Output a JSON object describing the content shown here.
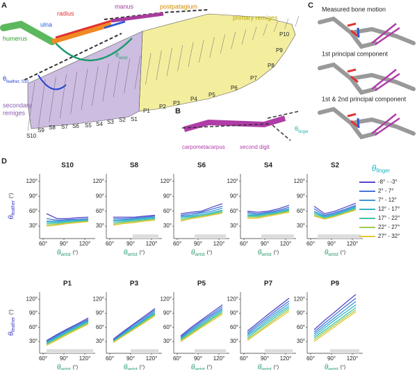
{
  "panel_labels": [
    "A",
    "B",
    "C",
    "D"
  ],
  "panel_a": {
    "manus": "manus",
    "postpatagium": "postpatagium",
    "primary_remiges": "primary remiges",
    "radius": "radius",
    "ulna": "ulna",
    "humerus": "humerus",
    "theta_wrist": {
      "symbol": "θ",
      "sub": "wrist"
    },
    "theta_feather": {
      "symbol": "θ",
      "sub": "feather, S10"
    },
    "secondary_remiges": [
      "secondary",
      "remiges"
    ],
    "primaries": [
      "P10",
      "P9",
      "P8",
      "P7",
      "P6",
      "P5",
      "P4",
      "P3",
      "P2",
      "P1"
    ],
    "secondaries": [
      "S1",
      "S2",
      "S3",
      "S4",
      "S5",
      "S6",
      "S7",
      "S8",
      "S9",
      "S10"
    ]
  },
  "panel_b": {
    "theta_finger": {
      "symbol": "θ",
      "sub": "finger"
    },
    "carpometacarpus": "carpometacarpus",
    "second_digit": "second digit"
  },
  "panel_c": {
    "titles": [
      "Measured bone motion",
      "1st principal component",
      "1st & 2nd principal component"
    ]
  },
  "panel_d": {
    "ylabel": {
      "symbol": "θ",
      "sub": "feather",
      "unit": "(°)"
    },
    "xlabel": {
      "symbol": "θ",
      "sub": "wrist",
      "unit": "(°)"
    },
    "legend": {
      "symbol": "θ",
      "sub": "finger",
      "items": [
        {
          "name": "-8° - -3°",
          "color": "#5448c8"
        },
        {
          "name": "2° - 7°",
          "color": "#4473d6"
        },
        {
          "name": "7° - 12°",
          "color": "#3f97d8"
        },
        {
          "name": "12° - 17°",
          "color": "#33b3c9"
        },
        {
          "name": "17° - 22°",
          "color": "#3cc3a3"
        },
        {
          "name": "22° - 27°",
          "color": "#9ccd4f"
        },
        {
          "name": "27° - 32°",
          "color": "#e8c53a"
        }
      ]
    }
  },
  "chart_data": [
    {
      "type": "line",
      "title": "S10",
      "x": [
        65,
        80,
        95,
        110,
        125
      ],
      "xlim": [
        55,
        135
      ],
      "xticks": [
        {
          "value": 60,
          "label": "60°"
        },
        {
          "value": 90,
          "label": "90°"
        },
        {
          "value": 120,
          "label": "120°"
        }
      ],
      "ylim": [
        5,
        135
      ],
      "yticks": [
        {
          "value": 30,
          "label": "30°"
        },
        {
          "value": 60,
          "label": "60°"
        },
        {
          "value": 90,
          "label": "90°"
        },
        {
          "value": 120,
          "label": "120°"
        }
      ],
      "series": [
        {
          "values": [
            55,
            45,
            45,
            47,
            48
          ]
        },
        {
          "values": [
            45,
            42,
            43,
            44,
            45
          ]
        },
        {
          "values": [
            40,
            40,
            41,
            42,
            43
          ]
        },
        {
          "values": [
            38,
            38,
            40,
            41,
            42
          ]
        },
        {
          "values": [
            35,
            36,
            38,
            40,
            41
          ]
        },
        {
          "values": [
            32,
            34,
            36,
            38,
            40
          ]
        },
        {
          "values": [
            30,
            32,
            35,
            37,
            39
          ]
        }
      ]
    },
    {
      "type": "line",
      "title": "S8",
      "x": [
        65,
        80,
        95,
        110,
        125
      ],
      "xlim": [
        55,
        135
      ],
      "xticks": [
        {
          "value": 60,
          "label": "60°"
        },
        {
          "value": 90,
          "label": "90°"
        },
        {
          "value": 120,
          "label": "120°"
        }
      ],
      "ylim": [
        5,
        135
      ],
      "yticks": [
        {
          "value": 30,
          "label": "30°"
        },
        {
          "value": 60,
          "label": "60°"
        },
        {
          "value": 90,
          "label": "90°"
        },
        {
          "value": 120,
          "label": "120°"
        }
      ],
      "highlight_xrange": [
        93,
        130
      ],
      "series": [
        {
          "values": [
            48,
            48,
            48,
            50,
            52
          ]
        },
        {
          "values": [
            45,
            45,
            46,
            48,
            50
          ]
        },
        {
          "values": [
            42,
            43,
            44,
            46,
            48
          ]
        },
        {
          "values": [
            40,
            41,
            43,
            45,
            47
          ]
        },
        {
          "values": [
            37,
            39,
            41,
            43,
            45
          ]
        },
        {
          "values": [
            34,
            37,
            39,
            41,
            43
          ]
        },
        {
          "values": [
            32,
            35,
            37,
            40,
            42
          ]
        }
      ]
    },
    {
      "type": "line",
      "title": "S6",
      "x": [
        65,
        80,
        95,
        110,
        125
      ],
      "xlim": [
        55,
        135
      ],
      "xticks": [
        {
          "value": 60,
          "label": "60°"
        },
        {
          "value": 90,
          "label": "90°"
        },
        {
          "value": 120,
          "label": "120°"
        }
      ],
      "ylim": [
        5,
        135
      ],
      "yticks": [
        {
          "value": 30,
          "label": "30°"
        },
        {
          "value": 60,
          "label": "60°"
        },
        {
          "value": 90,
          "label": "90°"
        },
        {
          "value": 120,
          "label": "120°"
        }
      ],
      "highlight_xrange": [
        85,
        130
      ],
      "series": [
        {
          "values": [
            55,
            58,
            60,
            68,
            75
          ]
        },
        {
          "values": [
            52,
            55,
            58,
            64,
            70
          ]
        },
        {
          "values": [
            50,
            52,
            56,
            60,
            66
          ]
        },
        {
          "values": [
            48,
            50,
            53,
            57,
            62
          ]
        },
        {
          "values": [
            45,
            48,
            51,
            55,
            60
          ]
        },
        {
          "values": [
            42,
            46,
            50,
            53,
            58
          ]
        },
        {
          "values": [
            40,
            45,
            48,
            52,
            56
          ]
        }
      ]
    },
    {
      "type": "line",
      "title": "S4",
      "x": [
        65,
        80,
        95,
        110,
        125
      ],
      "xlim": [
        55,
        135
      ],
      "xticks": [
        {
          "value": 60,
          "label": "60°"
        },
        {
          "value": 90,
          "label": "90°"
        },
        {
          "value": 120,
          "label": "120°"
        }
      ],
      "ylim": [
        5,
        135
      ],
      "yticks": [
        {
          "value": 30,
          "label": "30°"
        },
        {
          "value": 60,
          "label": "60°"
        },
        {
          "value": 90,
          "label": "90°"
        },
        {
          "value": 120,
          "label": "120°"
        }
      ],
      "highlight_xrange": [
        85,
        132
      ],
      "series": [
        {
          "values": [
            60,
            58,
            60,
            65,
            72
          ]
        },
        {
          "values": [
            58,
            55,
            58,
            62,
            68
          ]
        },
        {
          "values": [
            55,
            53,
            56,
            60,
            65
          ]
        },
        {
          "values": [
            52,
            52,
            55,
            58,
            63
          ]
        },
        {
          "values": [
            50,
            50,
            53,
            57,
            61
          ]
        },
        {
          "values": [
            48,
            48,
            52,
            55,
            60
          ]
        },
        {
          "values": [
            45,
            46,
            50,
            54,
            58
          ]
        }
      ]
    },
    {
      "type": "line",
      "title": "S2",
      "x": [
        65,
        80,
        95,
        110,
        125
      ],
      "xlim": [
        55,
        135
      ],
      "xticks": [
        {
          "value": 60,
          "label": "60°"
        },
        {
          "value": 90,
          "label": "90°"
        },
        {
          "value": 120,
          "label": "120°"
        }
      ],
      "ylim": [
        5,
        135
      ],
      "yticks": [
        {
          "value": 30,
          "label": "30°"
        },
        {
          "value": 60,
          "label": "60°"
        },
        {
          "value": 90,
          "label": "90°"
        },
        {
          "value": 120,
          "label": "120°"
        }
      ],
      "highlight_xrange": [
        70,
        132
      ],
      "series": [
        {
          "values": [
            70,
            55,
            60,
            68,
            76
          ]
        },
        {
          "values": [
            65,
            52,
            57,
            64,
            72
          ]
        },
        {
          "values": [
            60,
            50,
            55,
            62,
            70
          ]
        },
        {
          "values": [
            58,
            48,
            53,
            60,
            68
          ]
        },
        {
          "values": [
            55,
            47,
            52,
            58,
            66
          ]
        },
        {
          "values": [
            52,
            45,
            50,
            57,
            64
          ]
        },
        {
          "values": [
            50,
            44,
            49,
            56,
            62
          ]
        }
      ]
    },
    {
      "type": "line",
      "title": "P1",
      "x": [
        65,
        80,
        95,
        110,
        125
      ],
      "xlim": [
        55,
        135
      ],
      "xticks": [
        {
          "value": 60,
          "label": "60°"
        },
        {
          "value": 90,
          "label": "90°"
        },
        {
          "value": 120,
          "label": "120°"
        }
      ],
      "ylim": [
        5,
        135
      ],
      "yticks": [
        {
          "value": 30,
          "label": "30°"
        },
        {
          "value": 60,
          "label": "60°"
        },
        {
          "value": 90,
          "label": "90°"
        },
        {
          "value": 120,
          "label": "120°"
        }
      ],
      "highlight_xrange": [
        65,
        132
      ],
      "series": [
        {
          "values": [
            32,
            45,
            57,
            68,
            80
          ]
        },
        {
          "values": [
            30,
            43,
            55,
            66,
            77
          ]
        },
        {
          "values": [
            29,
            41,
            53,
            64,
            75
          ]
        },
        {
          "values": [
            27,
            39,
            51,
            62,
            73
          ]
        },
        {
          "values": [
            25,
            37,
            49,
            60,
            71
          ]
        },
        {
          "values": [
            23,
            35,
            47,
            58,
            69
          ]
        },
        {
          "values": [
            22,
            33,
            45,
            56,
            67
          ]
        }
      ]
    },
    {
      "type": "line",
      "title": "P3",
      "x": [
        65,
        80,
        95,
        110,
        125
      ],
      "xlim": [
        55,
        135
      ],
      "xticks": [
        {
          "value": 60,
          "label": "60°"
        },
        {
          "value": 90,
          "label": "90°"
        },
        {
          "value": 120,
          "label": "120°"
        }
      ],
      "ylim": [
        5,
        135
      ],
      "yticks": [
        {
          "value": 30,
          "label": "30°"
        },
        {
          "value": 60,
          "label": "60°"
        },
        {
          "value": 90,
          "label": "90°"
        },
        {
          "value": 120,
          "label": "120°"
        }
      ],
      "highlight_xrange": [
        90,
        130
      ],
      "series": [
        {
          "values": [
            35,
            52,
            68,
            84,
            100
          ]
        },
        {
          "values": [
            33,
            50,
            66,
            81,
            97
          ]
        },
        {
          "values": [
            32,
            48,
            63,
            78,
            94
          ]
        },
        {
          "values": [
            31,
            46,
            61,
            76,
            91
          ]
        },
        {
          "values": [
            30,
            44,
            59,
            74,
            89
          ]
        },
        {
          "values": [
            29,
            43,
            57,
            72,
            87
          ]
        },
        {
          "values": [
            28,
            42,
            56,
            70,
            85
          ]
        }
      ]
    },
    {
      "type": "line",
      "title": "P5",
      "x": [
        65,
        80,
        95,
        110,
        125
      ],
      "xlim": [
        55,
        135
      ],
      "xticks": [
        {
          "value": 60,
          "label": "60°"
        },
        {
          "value": 90,
          "label": "90°"
        },
        {
          "value": 120,
          "label": "120°"
        }
      ],
      "ylim": [
        5,
        135
      ],
      "yticks": [
        {
          "value": 30,
          "label": "30°"
        },
        {
          "value": 60,
          "label": "60°"
        },
        {
          "value": 90,
          "label": "90°"
        },
        {
          "value": 120,
          "label": "120°"
        }
      ],
      "highlight_xrange": [
        85,
        130
      ],
      "series": [
        {
          "values": [
            42,
            60,
            76,
            92,
            108
          ]
        },
        {
          "values": [
            40,
            57,
            73,
            88,
            104
          ]
        },
        {
          "values": [
            38,
            54,
            70,
            85,
            100
          ]
        },
        {
          "values": [
            36,
            52,
            67,
            82,
            97
          ]
        },
        {
          "values": [
            34,
            49,
            64,
            79,
            94
          ]
        },
        {
          "values": [
            32,
            47,
            62,
            77,
            91
          ]
        },
        {
          "values": [
            30,
            45,
            60,
            74,
            88
          ]
        }
      ]
    },
    {
      "type": "line",
      "title": "P7",
      "x": [
        65,
        80,
        95,
        110,
        125
      ],
      "xlim": [
        55,
        135
      ],
      "xticks": [
        {
          "value": 60,
          "label": "60°"
        },
        {
          "value": 90,
          "label": "90°"
        },
        {
          "value": 120,
          "label": "120°"
        }
      ],
      "ylim": [
        5,
        135
      ],
      "yticks": [
        {
          "value": 30,
          "label": "30°"
        },
        {
          "value": 60,
          "label": "60°"
        },
        {
          "value": 90,
          "label": "90°"
        },
        {
          "value": 120,
          "label": "120°"
        }
      ],
      "highlight_xrange": [
        90,
        130
      ],
      "series": [
        {
          "values": [
            52,
            70,
            88,
            105,
            122
          ]
        },
        {
          "values": [
            48,
            66,
            83,
            100,
            116
          ]
        },
        {
          "values": [
            45,
            62,
            79,
            95,
            111
          ]
        },
        {
          "values": [
            42,
            58,
            75,
            91,
            106
          ]
        },
        {
          "values": [
            38,
            55,
            71,
            87,
            102
          ]
        },
        {
          "values": [
            35,
            51,
            67,
            83,
            98
          ]
        },
        {
          "values": [
            32,
            48,
            64,
            79,
            94
          ]
        }
      ]
    },
    {
      "type": "line",
      "title": "P9",
      "x": [
        65,
        80,
        95,
        110,
        125
      ],
      "xlim": [
        55,
        135
      ],
      "xticks": [
        {
          "value": 60,
          "label": "60°"
        },
        {
          "value": 90,
          "label": "90°"
        },
        {
          "value": 120,
          "label": "120°"
        }
      ],
      "ylim": [
        5,
        135
      ],
      "yticks": [
        {
          "value": 30,
          "label": "30°"
        },
        {
          "value": 60,
          "label": "60°"
        },
        {
          "value": 90,
          "label": "90°"
        },
        {
          "value": 120,
          "label": "120°"
        }
      ],
      "highlight_xrange": [
        88,
        130
      ],
      "series": [
        {
          "values": [
            55,
            75,
            93,
            112,
            130
          ]
        },
        {
          "values": [
            50,
            69,
            87,
            105,
            122
          ]
        },
        {
          "values": [
            46,
            64,
            81,
            98,
            115
          ]
        },
        {
          "values": [
            42,
            59,
            76,
            92,
            108
          ]
        },
        {
          "values": [
            38,
            54,
            70,
            86,
            102
          ]
        },
        {
          "values": [
            34,
            50,
            66,
            82,
            97
          ]
        },
        {
          "values": [
            30,
            46,
            62,
            78,
            93
          ]
        }
      ]
    }
  ]
}
